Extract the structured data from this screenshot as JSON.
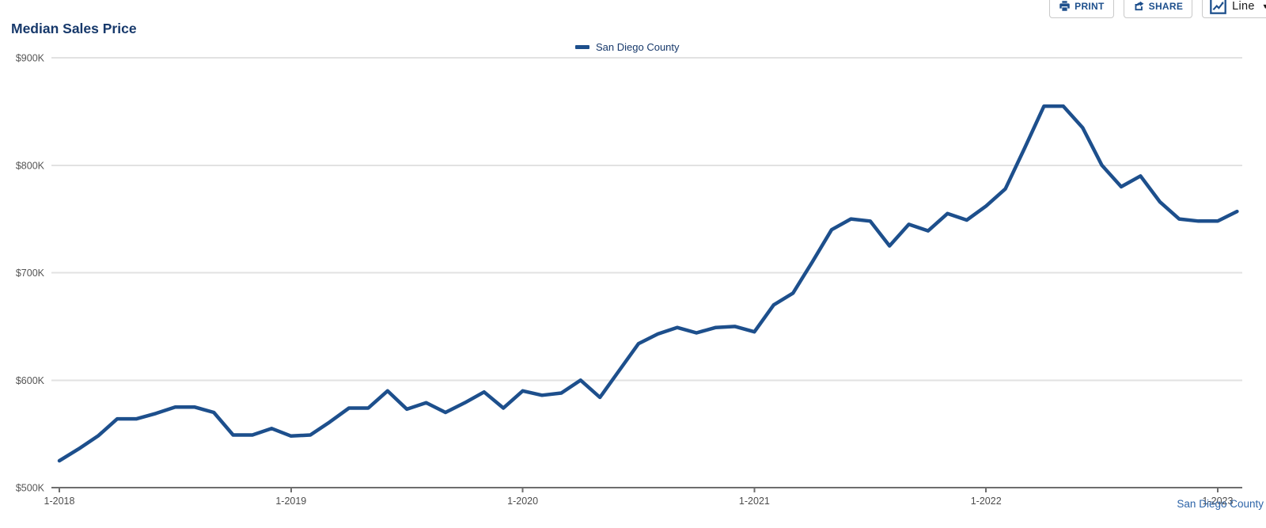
{
  "header": {
    "title": "Median Sales Price"
  },
  "toolbar": {
    "print_label": "PRINT",
    "share_label": "SHARE",
    "chart_type_label": "Line",
    "chart_type_caret": "▼"
  },
  "legend": {
    "series_label": "San Diego County"
  },
  "footer": {
    "source_label": "San Diego County"
  },
  "colors": {
    "brand_navy": "#1d4f8c",
    "title_navy": "#17396b",
    "link_blue": "#2d64a8",
    "gridline_gray": "#e2e2e2",
    "axis_gray": "#6e6e6e",
    "tick_label_gray": "#555555"
  },
  "chart_data": {
    "type": "line",
    "title": "Median Sales Price",
    "xlabel": "",
    "ylabel": "",
    "unit": "USD thousands",
    "frequency": "monthly",
    "start_month": "2018-01",
    "end_month": "2023-02",
    "ylim": [
      500,
      900
    ],
    "grid": true,
    "legend_position": "top-center",
    "y_ticks": [
      {
        "value": 500,
        "label": "$500K"
      },
      {
        "value": 600,
        "label": "$600K"
      },
      {
        "value": 700,
        "label": "$700K"
      },
      {
        "value": 800,
        "label": "$800K"
      },
      {
        "value": 900,
        "label": "$900K"
      }
    ],
    "x_ticks": [
      {
        "month_index": 0,
        "label": "1-2018"
      },
      {
        "month_index": 12,
        "label": "1-2019"
      },
      {
        "month_index": 24,
        "label": "1-2020"
      },
      {
        "month_index": 36,
        "label": "1-2021"
      },
      {
        "month_index": 48,
        "label": "1-2022"
      },
      {
        "month_index": 60,
        "label": "1-2023"
      }
    ],
    "series": [
      {
        "name": "San Diego County",
        "values": [
          525,
          536,
          548,
          564,
          564,
          569,
          575,
          575,
          570,
          549,
          549,
          555,
          548,
          549,
          561,
          574,
          574,
          590,
          573,
          579,
          570,
          579,
          589,
          574,
          590,
          586,
          588,
          600,
          584,
          609,
          634,
          643,
          649,
          644,
          649,
          650,
          645,
          670,
          681,
          710,
          740,
          750,
          748,
          725,
          745,
          739,
          755,
          749,
          762,
          778,
          816,
          855,
          855,
          835,
          800,
          780,
          790,
          766,
          750,
          748,
          748,
          757
        ]
      }
    ]
  }
}
